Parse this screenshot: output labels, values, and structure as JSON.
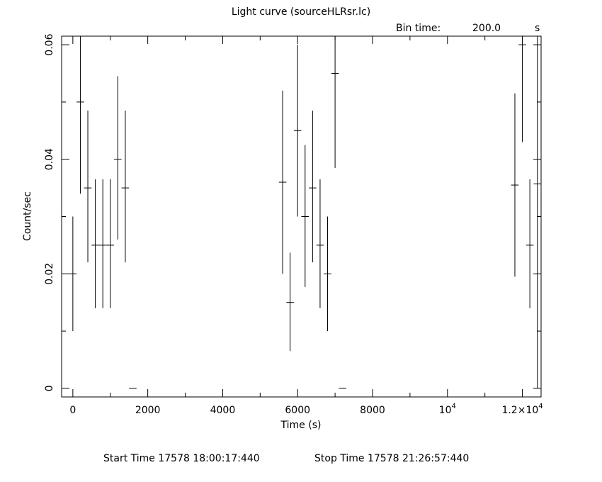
{
  "chart_data": {
    "type": "scatter",
    "title": "Light curve (sourceHLRsr.lc)",
    "bin_time_label": "Bin time:",
    "bin_time_value": "200.0",
    "bin_time_unit": "s",
    "xlabel": "Time (s)",
    "ylabel": "Count/sec",
    "xlim": [
      -300,
      12500
    ],
    "ylim": [
      -0.0015,
      0.0615
    ],
    "x_ticks": [
      {
        "value": 0,
        "label": "0"
      },
      {
        "value": 2000,
        "label": "2000"
      },
      {
        "value": 4000,
        "label": "4000"
      },
      {
        "value": 6000,
        "label": "6000"
      },
      {
        "value": 8000,
        "label": "8000"
      },
      {
        "value": 10000,
        "label": "10",
        "sup": "4"
      },
      {
        "value": 12000,
        "label": "1.2×10",
        "sup": "4"
      }
    ],
    "y_ticks": [
      {
        "value": 0,
        "label": "0"
      },
      {
        "value": 0.02,
        "label": "0.02"
      },
      {
        "value": 0.04,
        "label": "0.04"
      },
      {
        "value": 0.06,
        "label": "0.06"
      }
    ],
    "x_minor_step": 1000,
    "y_minor_step": 0.01,
    "grid": false,
    "points": [
      {
        "x": 0,
        "y": 0.02,
        "yerr_lo": 0.01,
        "yerr_hi": 0.03
      },
      {
        "x": 200,
        "y": 0.05,
        "yerr_lo": 0.034,
        "yerr_hi": 0.0615
      },
      {
        "x": 400,
        "y": 0.035,
        "yerr_lo": 0.022,
        "yerr_hi": 0.0485
      },
      {
        "x": 600,
        "y": 0.025,
        "yerr_lo": 0.014,
        "yerr_hi": 0.0365
      },
      {
        "x": 800,
        "y": 0.025,
        "yerr_lo": 0.014,
        "yerr_hi": 0.0365
      },
      {
        "x": 1000,
        "y": 0.025,
        "yerr_lo": 0.014,
        "yerr_hi": 0.0365
      },
      {
        "x": 1200,
        "y": 0.04,
        "yerr_lo": 0.026,
        "yerr_hi": 0.0545
      },
      {
        "x": 1400,
        "y": 0.035,
        "yerr_lo": 0.022,
        "yerr_hi": 0.0485
      },
      {
        "x": 1600,
        "y": 0.0,
        "yerr_lo": 0.0,
        "yerr_hi": 0.0
      },
      {
        "x": 5600,
        "y": 0.036,
        "yerr_lo": 0.02,
        "yerr_hi": 0.052
      },
      {
        "x": 5800,
        "y": 0.015,
        "yerr_lo": 0.0065,
        "yerr_hi": 0.0237
      },
      {
        "x": 6000,
        "y": 0.045,
        "yerr_lo": 0.03,
        "yerr_hi": 0.06
      },
      {
        "x": 6200,
        "y": 0.03,
        "yerr_lo": 0.0177,
        "yerr_hi": 0.0425
      },
      {
        "x": 6400,
        "y": 0.035,
        "yerr_lo": 0.022,
        "yerr_hi": 0.0485
      },
      {
        "x": 6600,
        "y": 0.025,
        "yerr_lo": 0.014,
        "yerr_hi": 0.0365
      },
      {
        "x": 6800,
        "y": 0.02,
        "yerr_lo": 0.01,
        "yerr_hi": 0.03
      },
      {
        "x": 7000,
        "y": 0.055,
        "yerr_lo": 0.0385,
        "yerr_hi": 0.0615
      },
      {
        "x": 7200,
        "y": 0.0,
        "yerr_lo": 0.0,
        "yerr_hi": 0.0
      },
      {
        "x": 11800,
        "y": 0.0355,
        "yerr_lo": 0.0195,
        "yerr_hi": 0.0515
      },
      {
        "x": 12000,
        "y": 0.06,
        "yerr_lo": 0.043,
        "yerr_hi": 0.0615
      },
      {
        "x": 12200,
        "y": 0.025,
        "yerr_lo": 0.014,
        "yerr_hi": 0.0365
      },
      {
        "x": 12400,
        "y": 0.0357,
        "yerr_lo": 0.0,
        "yerr_hi": 0.0615
      }
    ],
    "x_half_width": 100
  },
  "footer": {
    "start_time": "Start Time 17578 18:00:17:440",
    "stop_time": "Stop Time 17578 21:26:57:440"
  }
}
